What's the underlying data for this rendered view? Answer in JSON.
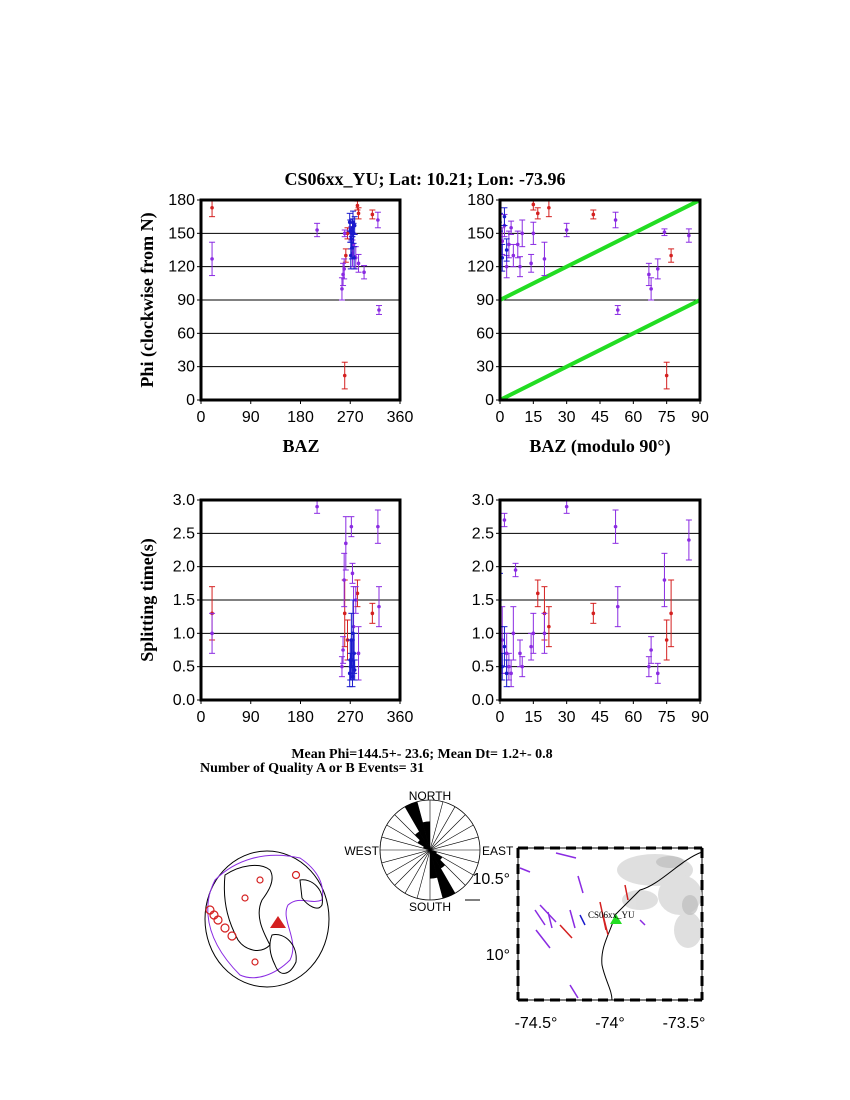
{
  "header": {
    "title": "CS06xx_YU; Lat:  10.21;  Lon:  -73.96"
  },
  "stats": {
    "line1": "Mean Phi=144.5+- 23.6; Mean Dt=  1.2+-  0.8",
    "line2": "Number of Quality A or B Events= 31"
  },
  "colors": {
    "red": "#d42020",
    "purple": "#8a2be2",
    "blue": "#1a1acc",
    "green": "#22dd22",
    "black": "#000000"
  },
  "chart_data": [
    {
      "type": "scatter",
      "id": "phi_baz",
      "title": "",
      "xlabel": "BAZ",
      "ylabel": "Phi (clockwise from N)",
      "xlim": [
        0,
        360
      ],
      "ylim": [
        0,
        180
      ],
      "xticks": [
        "0",
        "90",
        "180",
        "270",
        "360"
      ],
      "yticks": [
        "0",
        "30",
        "60",
        "90",
        "120",
        "150",
        "180"
      ],
      "grid": "horizontal",
      "series": [
        {
          "color": "red",
          "points": [
            [
              20,
              173,
              8
            ],
            [
              260,
              22,
              12
            ],
            [
              262,
              130,
              6
            ],
            [
              265,
              150,
              5
            ],
            [
              283,
              175,
              4
            ],
            [
              285,
              168,
              5
            ],
            [
              310,
              167,
              4
            ]
          ]
        },
        {
          "color": "purple",
          "points": [
            [
              20,
              127,
              15
            ],
            [
              210,
              153,
              6
            ],
            [
              255,
              100,
              10
            ],
            [
              257,
              113,
              10
            ],
            [
              259,
              118,
              9
            ],
            [
              260,
              150,
              3
            ],
            [
              272,
              150,
              6
            ],
            [
              274,
              132,
              12
            ],
            [
              276,
              140,
              10
            ],
            [
              280,
              128,
              10
            ],
            [
              285,
              123,
              8
            ],
            [
              295,
              115,
              6
            ],
            [
              320,
              162,
              7
            ],
            [
              322,
              81,
              4
            ]
          ]
        },
        {
          "color": "blue",
          "points": [
            [
              269,
              160,
              8
            ],
            [
              270,
              152,
              10
            ],
            [
              271,
              130,
              12
            ],
            [
              272,
              145,
              9
            ],
            [
              273,
              137,
              10
            ],
            [
              274,
              155,
              8
            ],
            [
              275,
              160,
              10
            ],
            [
              276,
              150,
              9
            ],
            [
              277,
              128,
              10
            ],
            [
              278,
              157,
              8
            ]
          ]
        }
      ]
    },
    {
      "type": "scatter",
      "id": "phi_baz_mod90",
      "title": "",
      "xlabel": "BAZ (modulo 90°)",
      "ylabel": "",
      "xlim": [
        0,
        90
      ],
      "ylim": [
        0,
        180
      ],
      "xticks": [
        "0",
        "15",
        "30",
        "45",
        "60",
        "75",
        "90"
      ],
      "yticks": [
        "0",
        "30",
        "60",
        "90",
        "120",
        "150",
        "180"
      ],
      "grid": "horizontal",
      "reference_lines": [
        [
          [
            0,
            0
          ],
          [
            90,
            90
          ]
        ],
        [
          [
            0,
            90
          ],
          [
            90,
            180
          ]
        ]
      ],
      "series": [
        {
          "color": "red",
          "points": [
            [
              15,
              176,
              5
            ],
            [
              17,
              168,
              5
            ],
            [
              22,
              173,
              8
            ],
            [
              42,
              167,
              4
            ],
            [
              75,
              22,
              12
            ],
            [
              77,
              130,
              6
            ]
          ]
        },
        {
          "color": "purple",
          "points": [
            [
              1,
              143,
              12
            ],
            [
              2,
              157,
              10
            ],
            [
              3,
              120,
              10
            ],
            [
              4,
              140,
              12
            ],
            [
              5,
              155,
              6
            ],
            [
              6,
              130,
              10
            ],
            [
              8,
              140,
              12
            ],
            [
              9,
              120,
              9
            ],
            [
              10,
              150,
              12
            ],
            [
              14,
              123,
              8
            ],
            [
              15,
              150,
              10
            ],
            [
              20,
              127,
              15
            ],
            [
              30,
              153,
              6
            ],
            [
              52,
              162,
              7
            ],
            [
              53,
              81,
              4
            ],
            [
              67,
              113,
              10
            ],
            [
              68,
              100,
              10
            ],
            [
              71,
              118,
              9
            ],
            [
              74,
              151,
              3
            ],
            [
              85,
              148,
              6
            ]
          ]
        },
        {
          "color": "blue",
          "points": [
            [
              0,
              160,
              8
            ],
            [
              1,
              128,
              12
            ],
            [
              2,
              165,
              8
            ],
            [
              3,
              135,
              10
            ]
          ]
        }
      ]
    },
    {
      "type": "scatter",
      "id": "dt_baz",
      "title": "",
      "xlabel": "",
      "ylabel": "Splitting time(s)",
      "xlim": [
        0,
        360
      ],
      "ylim": [
        0,
        3
      ],
      "xticks": [
        "0",
        "90",
        "180",
        "270",
        "360"
      ],
      "yticks": [
        "0.0",
        "0.5",
        "1.0",
        "1.5",
        "2.0",
        "2.5",
        "3.0"
      ],
      "grid": "horizontal",
      "series": [
        {
          "color": "red",
          "points": [
            [
              20,
              1.3,
              0.4
            ],
            [
              260,
              1.3,
              0.5
            ],
            [
              265,
              0.9,
              0.3
            ],
            [
              283,
              1.6,
              0.2
            ],
            [
              310,
              1.3,
              0.15
            ]
          ]
        },
        {
          "color": "purple",
          "points": [
            [
              20,
              1.0,
              0.3
            ],
            [
              210,
              2.9,
              0.1
            ],
            [
              255,
              0.5,
              0.15
            ],
            [
              257,
              0.75,
              0.2
            ],
            [
              259,
              1.8,
              0.4
            ],
            [
              262,
              2.35,
              0.4
            ],
            [
              272,
              2.6,
              0.15
            ],
            [
              274,
              1.9,
              0.15
            ],
            [
              276,
              1.1,
              0.6
            ],
            [
              280,
              1.5,
              0.2
            ],
            [
              285,
              0.7,
              0.4
            ],
            [
              320,
              2.6,
              0.25
            ],
            [
              322,
              1.4,
              0.3
            ]
          ]
        },
        {
          "color": "blue",
          "points": [
            [
              269,
              0.4,
              0.2
            ],
            [
              270,
              0.6,
              0.3
            ],
            [
              271,
              0.5,
              0.2
            ],
            [
              272,
              0.9,
              0.4
            ],
            [
              273,
              0.6,
              0.3
            ],
            [
              274,
              0.35,
              0.15
            ],
            [
              275,
              1.0,
              0.5
            ],
            [
              276,
              0.5,
              0.2
            ],
            [
              277,
              0.7,
              0.3
            ],
            [
              278,
              0.45,
              0.15
            ]
          ]
        }
      ]
    },
    {
      "type": "scatter",
      "id": "dt_baz_mod90",
      "title": "",
      "xlabel": "",
      "ylabel": "",
      "xlim": [
        0,
        90
      ],
      "ylim": [
        0,
        3
      ],
      "xticks": [
        "0",
        "15",
        "30",
        "45",
        "60",
        "75",
        "90"
      ],
      "yticks": [
        "0.0",
        "0.5",
        "1.0",
        "1.5",
        "2.0",
        "2.5",
        "3.0"
      ],
      "grid": "horizontal",
      "series": [
        {
          "color": "red",
          "points": [
            [
              17,
              1.6,
              0.2
            ],
            [
              20,
              1.3,
              0.4
            ],
            [
              22,
              1.1,
              0.3
            ],
            [
              42,
              1.3,
              0.15
            ],
            [
              75,
              0.9,
              0.3
            ],
            [
              77,
              1.3,
              0.5
            ]
          ]
        },
        {
          "color": "purple",
          "points": [
            [
              1,
              0.9,
              0.5
            ],
            [
              2,
              2.7,
              0.1
            ],
            [
              3,
              0.7,
              0.3
            ],
            [
              4,
              0.5,
              0.2
            ],
            [
              5,
              0.4,
              0.2
            ],
            [
              6,
              1.0,
              0.4
            ],
            [
              7,
              1.95,
              0.1
            ],
            [
              9,
              0.7,
              0.2
            ],
            [
              10,
              0.5,
              0.15
            ],
            [
              14,
              0.8,
              0.2
            ],
            [
              15,
              1.0,
              0.3
            ],
            [
              20,
              1.0,
              0.3
            ],
            [
              30,
              2.9,
              0.1
            ],
            [
              52,
              2.6,
              0.25
            ],
            [
              53,
              1.4,
              0.3
            ],
            [
              67,
              0.5,
              0.15
            ],
            [
              68,
              0.75,
              0.2
            ],
            [
              71,
              0.4,
              0.15
            ],
            [
              74,
              1.8,
              0.4
            ],
            [
              85,
              2.4,
              0.3
            ]
          ]
        },
        {
          "color": "blue",
          "points": [
            [
              0,
              1.5,
              0.4
            ],
            [
              1,
              0.5,
              0.2
            ],
            [
              2,
              0.8,
              0.3
            ],
            [
              3,
              0.4,
              0.2
            ]
          ]
        }
      ]
    }
  ],
  "rose": {
    "labels": {
      "north": "NORTH",
      "south": "SOUTH",
      "east": "EAST",
      "west": "WEST"
    },
    "counts": [
      0,
      0,
      0,
      0,
      0,
      0,
      0,
      1,
      2,
      3,
      7,
      4
    ]
  },
  "map": {
    "station_label": "CS06xx_YU",
    "lat_ticks": [
      "10.5°",
      "10°"
    ],
    "lon_ticks": [
      "-74.5°",
      "-74°",
      "-73.5°"
    ]
  }
}
